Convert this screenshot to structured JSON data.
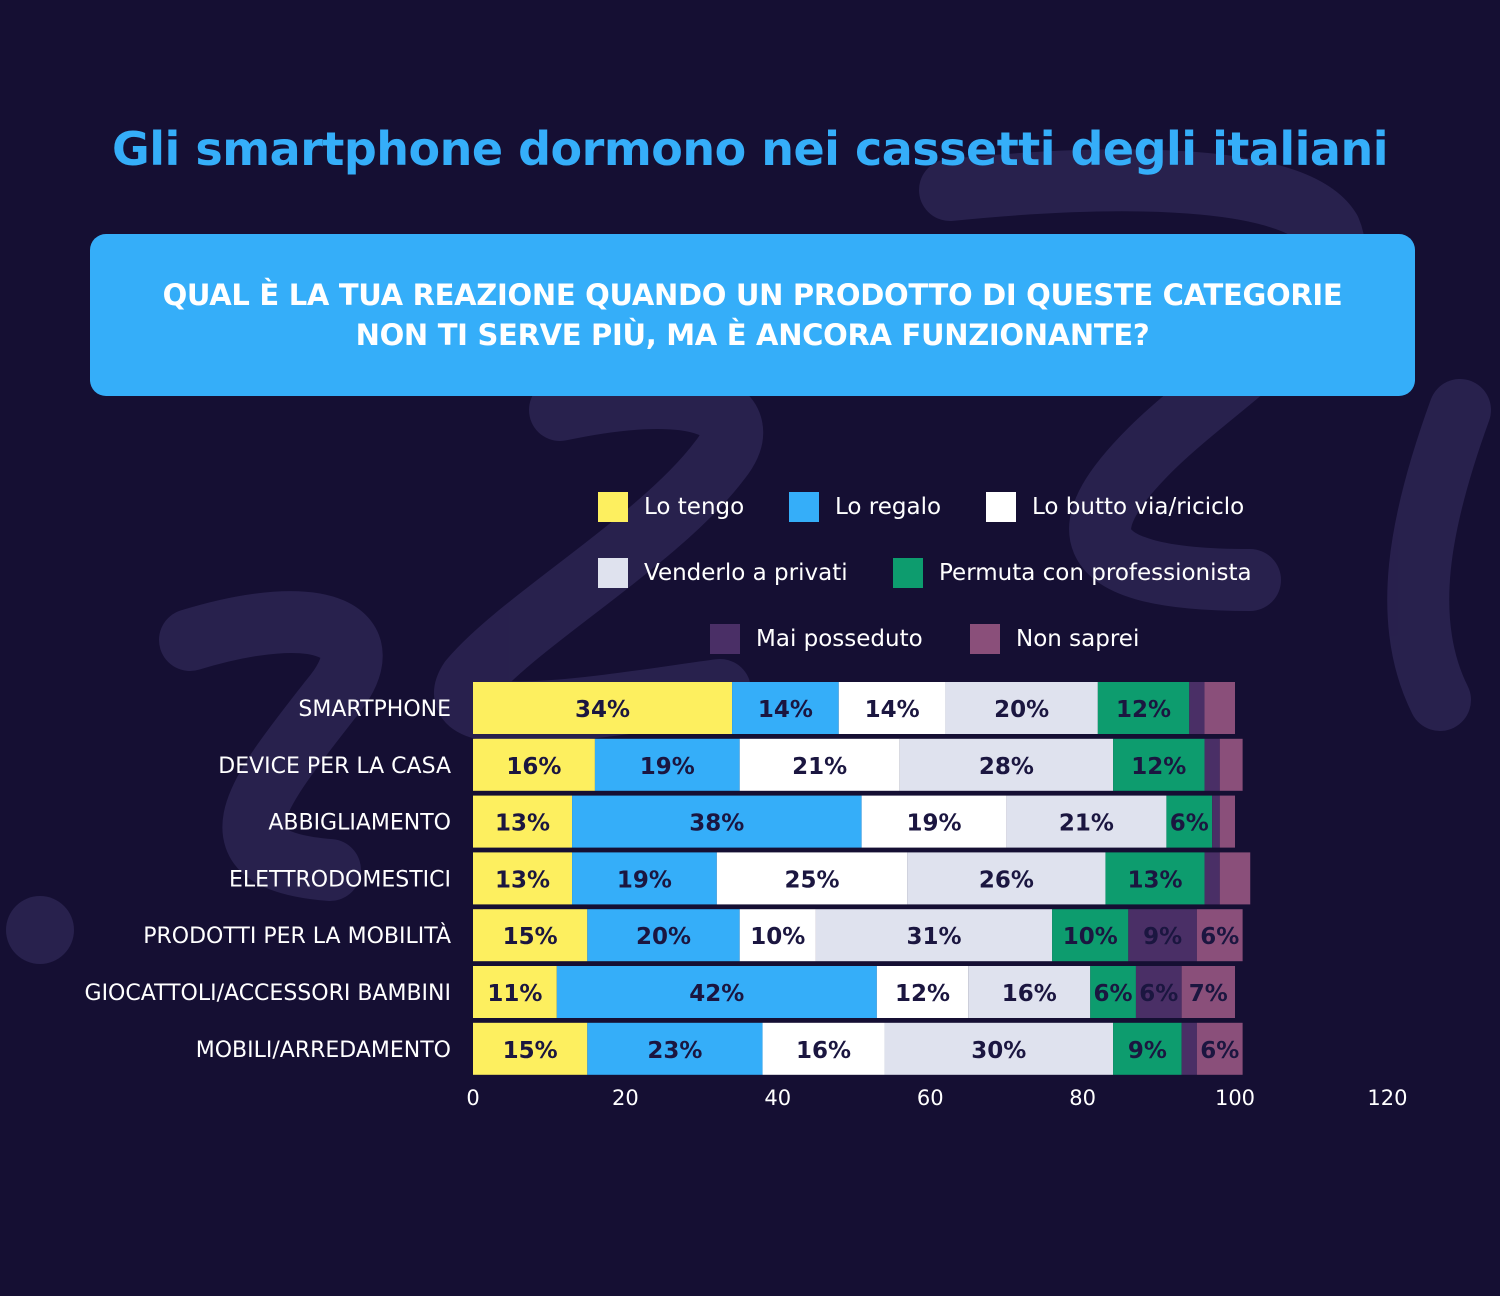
{
  "title": "Gli smartphone dormono nei cassetti degli italiani",
  "question": "QUAL È LA TUA REAZIONE QUANDO UN PRODOTTO DI QUESTE CATEGORIE NON TI SERVE PIÙ, MA È ANCORA FUNZIONANTE?",
  "colors": {
    "background": "#150f33",
    "accent": "#35aef9",
    "lo_tengo": "#fdef5f",
    "lo_regalo": "#35aef9",
    "lo_butto": "#ffffff",
    "venderlo": "#dfe2ee",
    "permuta": "#0d9c6e",
    "mai_posseduto": "#4a2f66",
    "non_saprei": "#8a4f7a"
  },
  "chart_data": {
    "type": "bar",
    "orientation": "horizontal",
    "stacked": true,
    "title": "Gli smartphone dormono nei cassetti degli italiani",
    "categories": [
      "SMARTPHONE",
      "DEVICE PER LA CASA",
      "ABBIGLIAMENTO",
      "ELETTRODOMESTICI",
      "PRODOTTI PER LA MOBILITÀ",
      "GIOCATTOLI/ACCESSORI BAMBINI",
      "MOBILI/ARREDAMENTO"
    ],
    "series": [
      {
        "name": "Lo tengo",
        "color": "#fdef5f",
        "values": [
          34,
          16,
          13,
          13,
          15,
          11,
          15
        ]
      },
      {
        "name": "Lo regalo",
        "color": "#35aef9",
        "values": [
          14,
          19,
          38,
          19,
          20,
          42,
          23
        ]
      },
      {
        "name": "Lo butto via/riciclo",
        "color": "#ffffff",
        "values": [
          14,
          21,
          19,
          25,
          10,
          12,
          16
        ]
      },
      {
        "name": "Venderlo a privati",
        "color": "#dfe2ee",
        "values": [
          20,
          28,
          21,
          26,
          31,
          16,
          30
        ]
      },
      {
        "name": "Permuta con professionista",
        "color": "#0d9c6e",
        "values": [
          12,
          12,
          6,
          13,
          10,
          6,
          9
        ]
      },
      {
        "name": "Mai posseduto",
        "color": "#4a2f66",
        "values": [
          2,
          2,
          1,
          2,
          9,
          6,
          2
        ]
      },
      {
        "name": "Non saprei",
        "color": "#8a4f7a",
        "values": [
          4,
          3,
          2,
          4,
          6,
          7,
          6
        ]
      }
    ],
    "data_labels": [
      [
        "34%",
        "14%",
        "14%",
        "20%",
        "12%",
        "",
        ""
      ],
      [
        "16%",
        "19%",
        "21%",
        "28%",
        "12%",
        "",
        ""
      ],
      [
        "13%",
        "38%",
        "19%",
        "21%",
        "6%",
        "",
        ""
      ],
      [
        "13%",
        "19%",
        "25%",
        "26%",
        "13%",
        "",
        ""
      ],
      [
        "15%",
        "20%",
        "10%",
        "31%",
        "10%",
        "9%",
        "6%"
      ],
      [
        "11%",
        "42%",
        "12%",
        "16%",
        "6%",
        "6%",
        "7%"
      ],
      [
        "15%",
        "23%",
        "16%",
        "30%",
        "9%",
        "",
        "6%"
      ]
    ],
    "xlim": [
      0,
      120
    ],
    "xticks": [
      "0",
      "20",
      "40",
      "60",
      "80",
      "100",
      "120"
    ],
    "xlabel": "",
    "ylabel": "",
    "grid": false,
    "legend_position": "top"
  }
}
